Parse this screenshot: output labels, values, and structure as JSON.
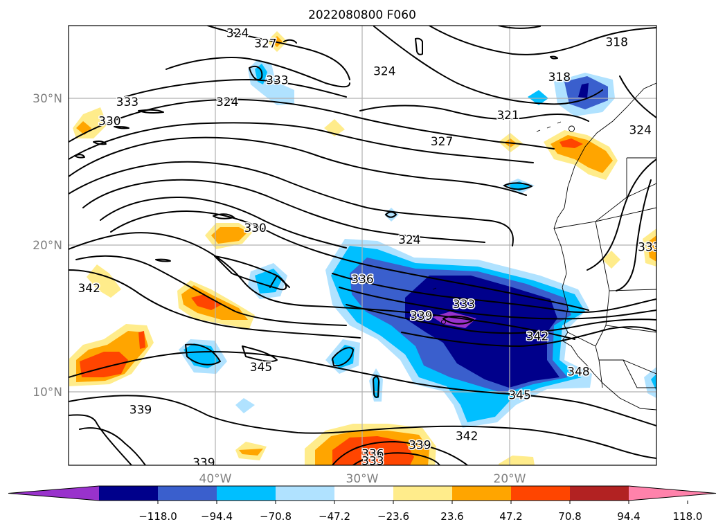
{
  "title": "2022080800 F060",
  "map": {
    "lon_range": [
      -50,
      -10
    ],
    "lat_range": [
      5,
      35
    ],
    "lon_ticks": [
      {
        "value": -40,
        "label": "40°W"
      },
      {
        "value": -30,
        "label": "30°W"
      },
      {
        "value": -20,
        "label": "20°W"
      }
    ],
    "lat_ticks": [
      {
        "value": 30,
        "label": "30°N"
      },
      {
        "value": 20,
        "label": "20°N"
      },
      {
        "value": 10,
        "label": "10°N"
      }
    ],
    "grid": true
  },
  "colorbar": {
    "ticks": [
      "−118.0",
      "−94.4",
      "−70.8",
      "−47.2",
      "−23.6",
      "23.6",
      "47.2",
      "70.8",
      "94.4",
      "118.0"
    ],
    "colors": [
      "#9932cc",
      "#00008b",
      "#3a5fcd",
      "#00bfff",
      "#b0e2ff",
      "#ffffff",
      "#ffec8b",
      "#ffa500",
      "#ff4500",
      "#b22222",
      "#ff82ab"
    ]
  },
  "contours": {
    "labels": [
      {
        "text": "324",
        "lon": -38.5,
        "lat": 34.5
      },
      {
        "text": "327",
        "lon": -36.6,
        "lat": 33.8
      },
      {
        "text": "333",
        "lon": -35.8,
        "lat": 31.3
      },
      {
        "text": "324",
        "lon": -28.5,
        "lat": 31.9
      },
      {
        "text": "318",
        "lon": -12.7,
        "lat": 33.9
      },
      {
        "text": "318",
        "lon": -16.6,
        "lat": 31.5
      },
      {
        "text": "324",
        "lon": -39.2,
        "lat": 29.8
      },
      {
        "text": "333",
        "lon": -46.0,
        "lat": 29.8
      },
      {
        "text": "330",
        "lon": -47.2,
        "lat": 28.5
      },
      {
        "text": "321",
        "lon": -20.1,
        "lat": 28.9
      },
      {
        "text": "327",
        "lon": -24.6,
        "lat": 27.1
      },
      {
        "text": "324",
        "lon": -11.1,
        "lat": 27.9
      },
      {
        "text": "330",
        "lon": -37.3,
        "lat": 21.2
      },
      {
        "text": "324",
        "lon": -26.8,
        "lat": 20.4
      },
      {
        "text": "333",
        "lon": -10.5,
        "lat": 19.9
      },
      {
        "text": "342",
        "lon": -48.6,
        "lat": 17.1
      },
      {
        "text": "336",
        "lon": -30.0,
        "lat": 17.7
      },
      {
        "text": "333",
        "lon": -23.1,
        "lat": 16.0
      },
      {
        "text": "339",
        "lon": -26.0,
        "lat": 15.2
      },
      {
        "text": "342",
        "lon": -18.1,
        "lat": 13.8
      },
      {
        "text": "345",
        "lon": -36.9,
        "lat": 11.7
      },
      {
        "text": "348",
        "lon": -15.3,
        "lat": 11.4
      },
      {
        "text": "345",
        "lon": -19.3,
        "lat": 9.8
      },
      {
        "text": "339",
        "lon": -45.1,
        "lat": 8.8
      },
      {
        "text": "342",
        "lon": -22.9,
        "lat": 7.0
      },
      {
        "text": "339",
        "lon": -26.1,
        "lat": 6.4
      },
      {
        "text": "336",
        "lon": -29.3,
        "lat": 5.8
      },
      {
        "text": "333",
        "lon": -29.3,
        "lat": 5.3
      },
      {
        "text": "339",
        "lon": -40.8,
        "lat": 5.2
      }
    ]
  }
}
